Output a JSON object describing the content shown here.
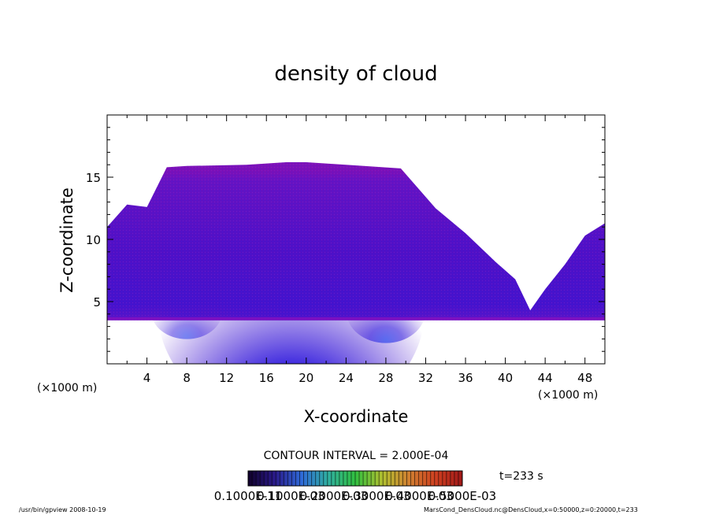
{
  "chart_data": {
    "type": "heatmap",
    "title": "density of cloud",
    "xlabel": "X-coordinate",
    "ylabel": "Z-coordinate",
    "x_unit_left": "(×1000 m)",
    "x_unit_right": "(×1000 m)",
    "xlim": [
      0,
      50
    ],
    "ylim": [
      0,
      20
    ],
    "xticks": [
      4,
      8,
      12,
      16,
      20,
      24,
      28,
      32,
      36,
      40,
      44,
      48
    ],
    "yticks": [
      5,
      10,
      15
    ],
    "cloud_base": 3.5,
    "cloud_top_profile": {
      "x": [
        0,
        2,
        4,
        6,
        8,
        14,
        18,
        20,
        24,
        29.5,
        33,
        36,
        39,
        41,
        42.5,
        44,
        46,
        48,
        50
      ],
      "z": [
        11,
        12.8,
        12.6,
        15.8,
        15.9,
        16.0,
        16.2,
        16.2,
        16.0,
        15.7,
        12.5,
        10.5,
        8.2,
        6.8,
        4.3,
        6.0,
        8.0,
        10.3,
        11.3
      ]
    },
    "contour_interval": "CONTOUR INTERVAL = 2.000E-04",
    "time_label": "t=233 s",
    "colorbar_labels": [
      "0.1000E-11",
      "0.1000E-03",
      "0.2000E-03",
      "0.3000E-03",
      "0.4000E-03",
      "0.5000E-03"
    ],
    "colorbar_colors": [
      "#10002a",
      "#2a1a8a",
      "#2f6ad8",
      "#30b0a0",
      "#30c040",
      "#b0c030",
      "#d08030",
      "#d04020",
      "#a01818"
    ],
    "colors": {
      "top_band": "#7a10b8",
      "upper": "#6a12c0",
      "mid": "#4a10c8",
      "core": "#3010d8",
      "core_bright": "#1030f0",
      "base": "#8010c0"
    }
  },
  "footer": {
    "left": "/usr/bin/gpview   2008-10-19",
    "right": "MarsCond_DensCloud.nc@DensCloud,x=0:50000,z=0:20000,t=233"
  }
}
